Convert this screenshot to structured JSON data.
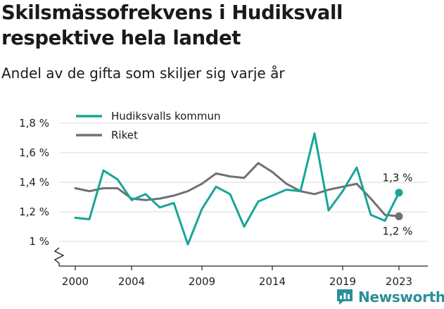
{
  "title": "Skilsmässofrekvens i Hudiksvall respektive hela landet",
  "subtitle": "Andel av de gifta som skiljer sig varje år",
  "brand": "Newsworthy",
  "colors": {
    "hudiksvall": "#17a598",
    "riket": "#717074",
    "brand": "#2b8f9a"
  },
  "chart_data": {
    "type": "line",
    "title": "Skilsmässofrekvens i Hudiksvall respektive hela landet",
    "subtitle": "Andel av de gifta som skiljer sig varje år",
    "ylim": [
      0.85,
      1.85
    ],
    "y_axis_break": true,
    "yticks": [
      1.0,
      1.2,
      1.4,
      1.6,
      1.8
    ],
    "ytick_labels": [
      "1 %",
      "1,2 %",
      "1,4 %",
      "1,6 %",
      "1,8 %"
    ],
    "xticks": [
      2000,
      2004,
      2009,
      2014,
      2019,
      2023
    ],
    "grid": "horizontal",
    "legend": "top-left",
    "x": [
      2000,
      2001,
      2002,
      2003,
      2004,
      2005,
      2006,
      2007,
      2008,
      2009,
      2010,
      2011,
      2012,
      2013,
      2014,
      2015,
      2016,
      2017,
      2018,
      2019,
      2020,
      2021,
      2022,
      2023
    ],
    "series": [
      {
        "name": "Hudiksvalls kommun",
        "color": "#17a598",
        "values": [
          1.16,
          1.15,
          1.48,
          1.42,
          1.28,
          1.32,
          1.23,
          1.26,
          0.98,
          1.22,
          1.37,
          1.32,
          1.1,
          1.27,
          1.31,
          1.35,
          1.34,
          1.73,
          1.21,
          1.34,
          1.5,
          1.18,
          1.14,
          1.33
        ],
        "end_label": "1,3 %"
      },
      {
        "name": "Riket",
        "color": "#717074",
        "values": [
          1.36,
          1.34,
          1.36,
          1.36,
          1.29,
          1.28,
          1.29,
          1.31,
          1.34,
          1.39,
          1.46,
          1.44,
          1.43,
          1.53,
          1.47,
          1.39,
          1.34,
          1.32,
          1.35,
          1.37,
          1.39,
          1.29,
          1.18,
          1.17
        ],
        "end_label": "1,2 %"
      }
    ]
  }
}
